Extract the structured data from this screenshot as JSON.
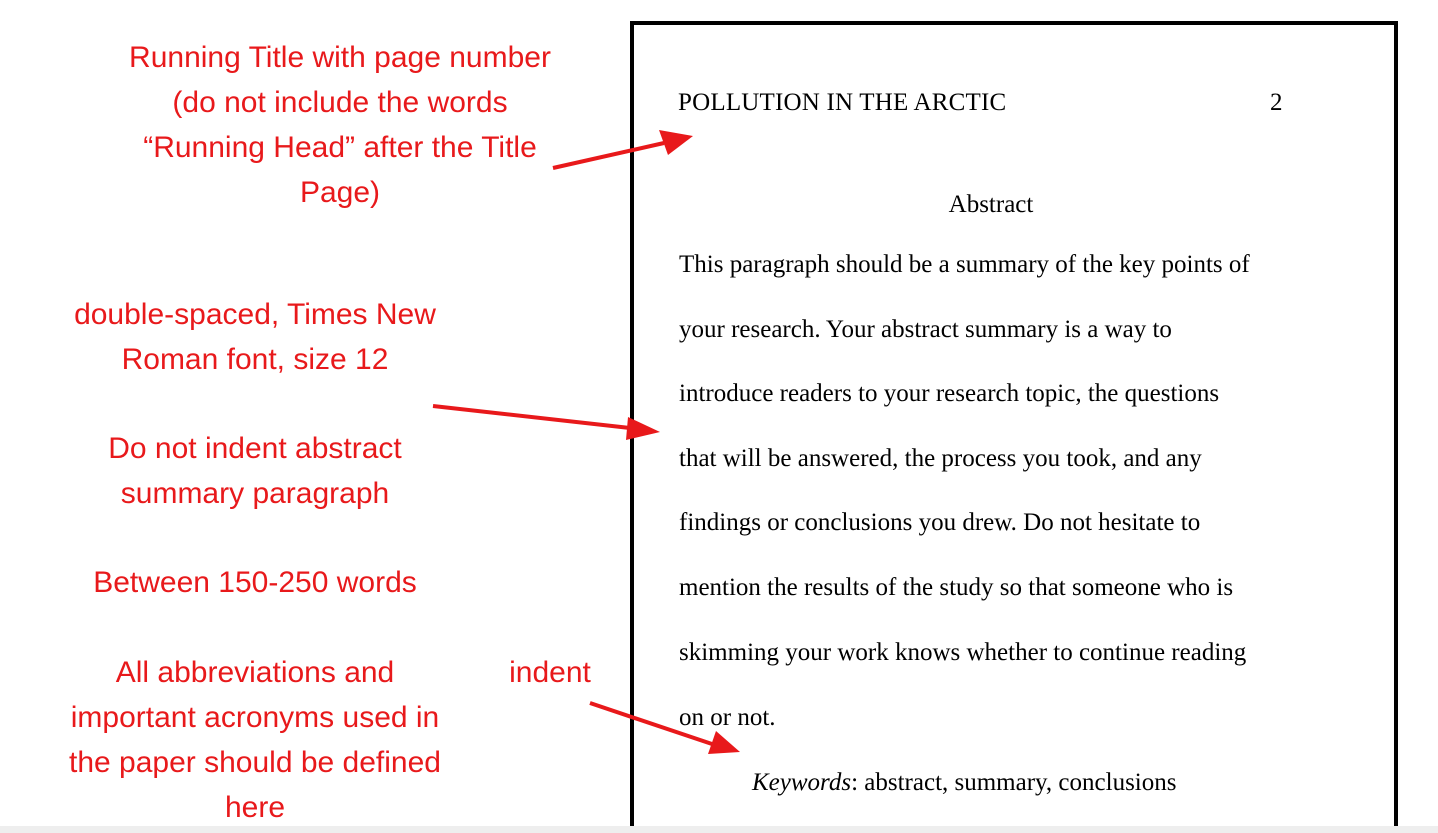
{
  "annotations": {
    "running_title": "Running Title with page number\n(do not include the words\n“Running Head” after the Title\nPage)",
    "spacing": "double-spaced, Times New\nRoman font, size 12",
    "indent_rule": "Do not indent abstract\nsummary paragraph",
    "word_count": "Between 150-250 words",
    "abbreviations": "All abbreviations and\nimportant acronyms used in\nthe paper should be defined\nhere",
    "indent": "indent"
  },
  "page": {
    "header_title": "POLLUTION IN THE ARCTIC",
    "page_number": "2",
    "heading": "Abstract",
    "lines": [
      "This paragraph should be a summary of the key points of",
      "your research. Your abstract summary is a way to",
      "introduce readers to your research topic, the questions",
      "that will be answered, the process you took, and any",
      "findings or conclusions you drew.  Do not hesitate to",
      "mention the results of the study so that someone who is",
      "skimming your work knows whether to continue reading",
      "on or not."
    ],
    "keywords_label": "Keywords",
    "keywords_text": ": abstract, summary, conclusions"
  },
  "colors": {
    "annotation": "#e8191b",
    "page_border": "#000000"
  }
}
